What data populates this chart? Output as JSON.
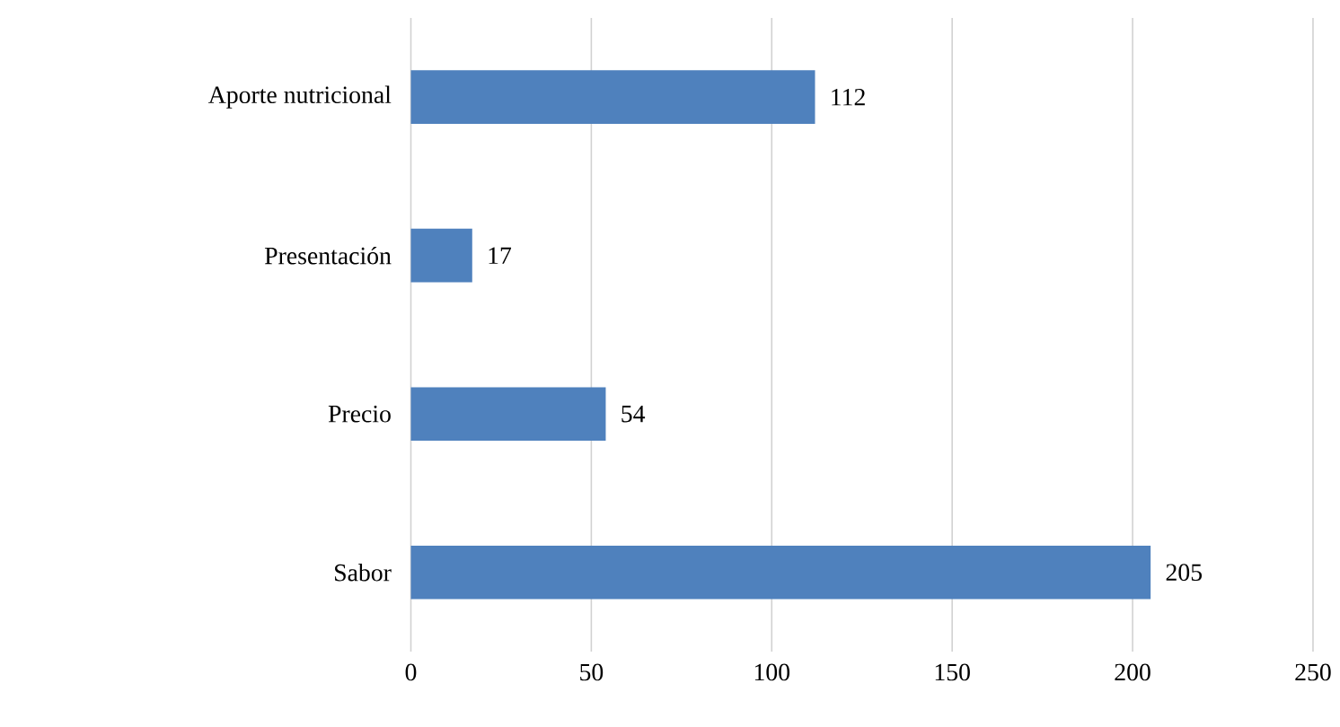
{
  "chart_data": {
    "type": "bar",
    "orientation": "horizontal",
    "categories": [
      "Aporte nutricional",
      "Presentación",
      "Precio",
      "Sabor"
    ],
    "values": [
      112,
      17,
      54,
      205
    ],
    "color": "#4f81bd",
    "xlim": [
      0,
      250
    ],
    "xticks": [
      0,
      50,
      100,
      150,
      200,
      250
    ],
    "grid": "x",
    "data_labels": true
  }
}
